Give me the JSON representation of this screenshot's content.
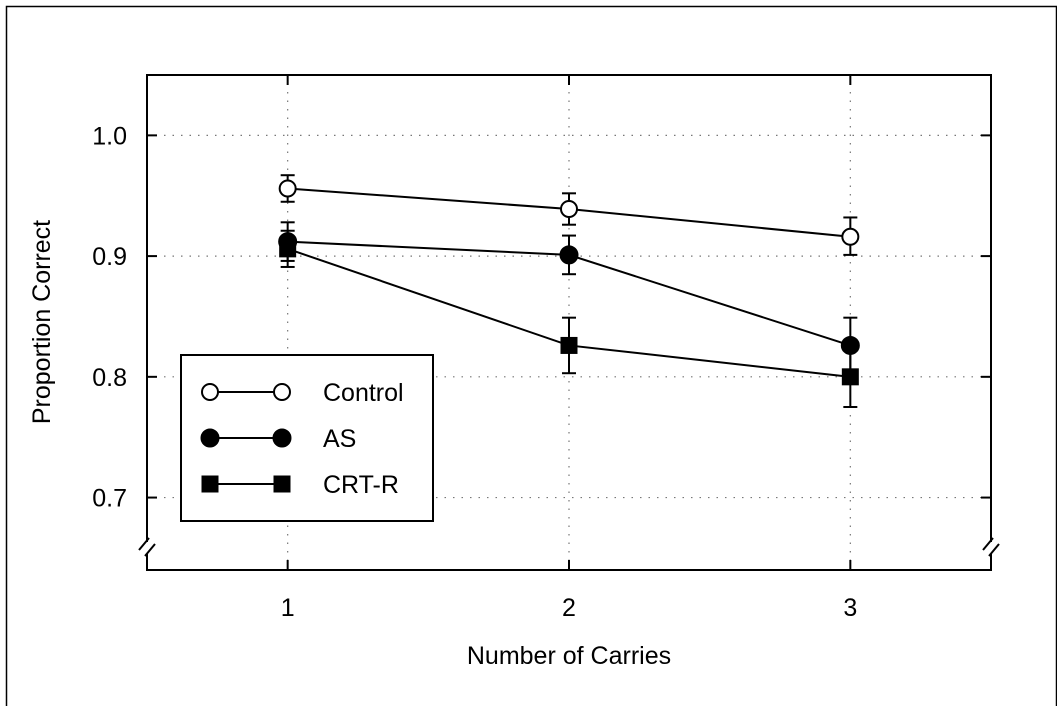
{
  "chart_data": {
    "type": "line",
    "title": "",
    "xlabel": "Number of Carries",
    "ylabel": "Proportion Correct",
    "x": [
      1,
      2,
      3
    ],
    "xticks": [
      "1",
      "2",
      "3"
    ],
    "xlim": [
      0.5,
      3.5
    ],
    "ylim": [
      0.64,
      1.05
    ],
    "yticks": [
      "0.7",
      "0.8",
      "0.9",
      "1.0"
    ],
    "grid": true,
    "axis_break": true,
    "legend_position": "bottom-left",
    "series": [
      {
        "name": "Control",
        "marker": "circle-open",
        "values": [
          0.956,
          0.939,
          0.916
        ],
        "err_low": [
          0.945,
          0.926,
          0.901
        ],
        "err_high": [
          0.967,
          0.952,
          0.932
        ]
      },
      {
        "name": "AS",
        "marker": "circle-filled",
        "values": [
          0.912,
          0.901,
          0.826
        ],
        "err_low": [
          0.896,
          0.885,
          0.803
        ],
        "err_high": [
          0.928,
          0.917,
          0.849
        ]
      },
      {
        "name": "CRT-R",
        "marker": "square-filled",
        "values": [
          0.906,
          0.826,
          0.8
        ],
        "err_low": [
          0.891,
          0.803,
          0.775
        ],
        "err_high": [
          0.921,
          0.849,
          0.824
        ]
      }
    ]
  }
}
